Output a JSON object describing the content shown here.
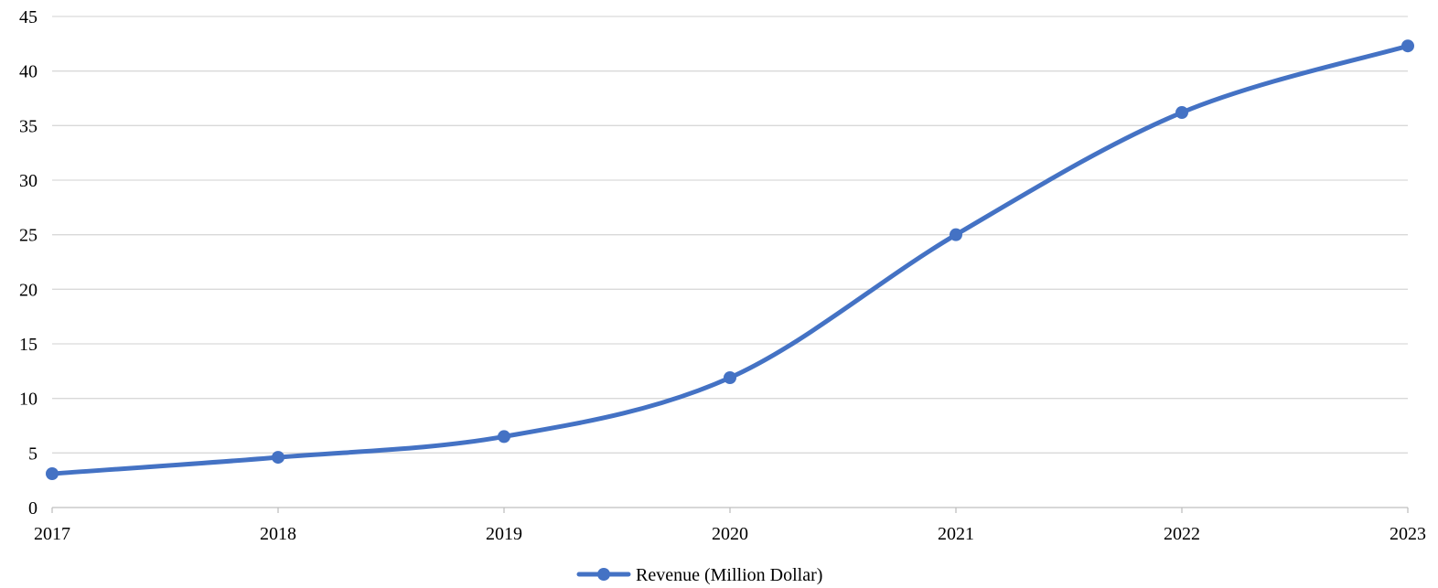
{
  "chart_data": {
    "type": "line",
    "title": "",
    "xlabel": "",
    "ylabel": "",
    "x": [
      "2017",
      "2018",
      "2019",
      "2020",
      "2021",
      "2022",
      "2023"
    ],
    "series": [
      {
        "name": "Revenue (Million Dollar)",
        "values": [
          3.1,
          4.6,
          6.5,
          11.9,
          25.0,
          36.2,
          42.3
        ],
        "color": "#4472c4",
        "smooth": true,
        "marker": "circle"
      }
    ],
    "ylim": [
      0,
      45
    ],
    "yticks": [
      "0",
      "5",
      "10",
      "15",
      "20",
      "25",
      "30",
      "35",
      "40",
      "45"
    ],
    "grid": true,
    "legend": "bottom-center"
  }
}
